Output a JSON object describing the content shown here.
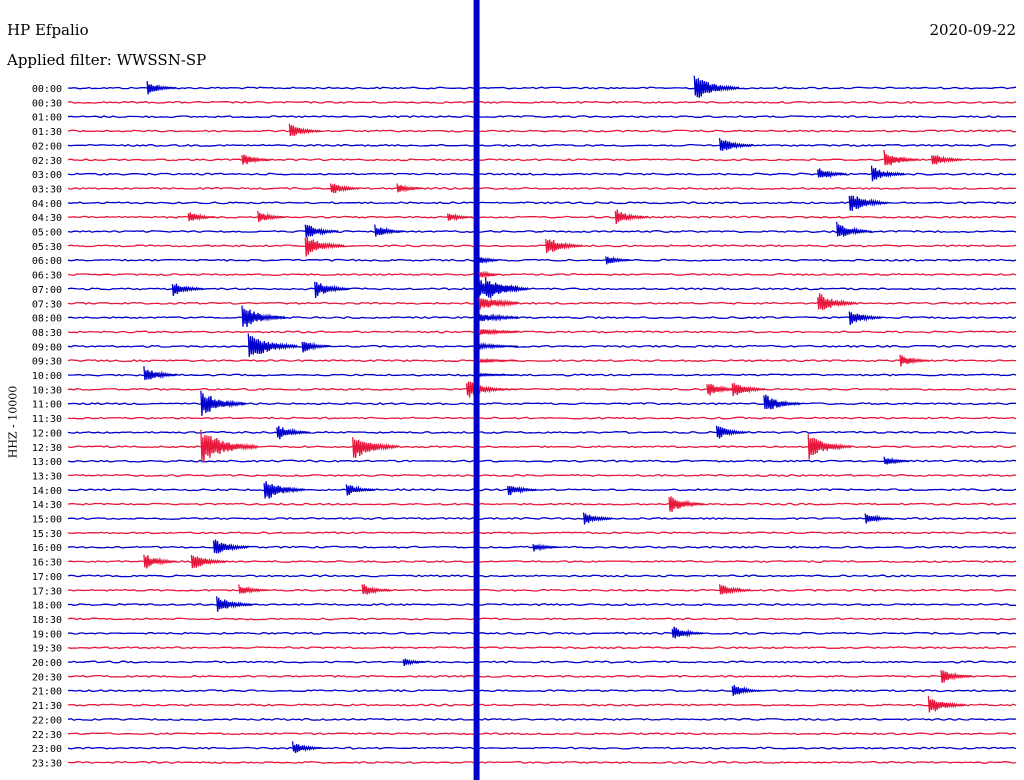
{
  "header": {
    "station": "HP Efpalio",
    "filter": "Applied filter: WWSSN-SP",
    "date": "2020-09-22"
  },
  "colors": {
    "trace_a": "#0000cc",
    "trace_b": "#e8183c",
    "text": "#000000"
  },
  "chart_data": {
    "type": "line",
    "title": "HP Efpalio",
    "subtitle": "Applied filter: WWSSN-SP",
    "ylabel": "HHZ - 10000",
    "xlabel": "",
    "date": "2020-09-22",
    "rows_per_hour": 2,
    "row_labels": [
      "00:00",
      "00:30",
      "01:00",
      "01:30",
      "02:00",
      "02:30",
      "03:00",
      "03:30",
      "04:00",
      "04:30",
      "05:00",
      "05:30",
      "06:00",
      "06:30",
      "07:00",
      "07:30",
      "08:00",
      "08:30",
      "09:00",
      "09:30",
      "10:00",
      "10:30",
      "11:00",
      "11:30",
      "12:00",
      "12:30",
      "13:00",
      "13:30",
      "14:00",
      "14:30",
      "15:00",
      "15:30",
      "16:00",
      "16:30",
      "17:00",
      "17:30",
      "18:00",
      "18:30",
      "19:00",
      "19:30",
      "20:00",
      "20:30",
      "21:00",
      "21:30",
      "22:00",
      "22:30",
      "23:00",
      "23:30"
    ],
    "row_minutes": 30,
    "events": [
      {
        "row": "00:00",
        "minute": 2.5,
        "amp": 0.8
      },
      {
        "row": "00:00",
        "minute": 19.8,
        "amp": 1.6
      },
      {
        "row": "01:30",
        "minute": 7.0,
        "amp": 0.9
      },
      {
        "row": "02:00",
        "minute": 20.6,
        "amp": 1.0
      },
      {
        "row": "02:30",
        "minute": 5.5,
        "amp": 0.8
      },
      {
        "row": "02:30",
        "minute": 25.8,
        "amp": 1.1
      },
      {
        "row": "02:30",
        "minute": 27.3,
        "amp": 0.9
      },
      {
        "row": "03:00",
        "minute": 23.7,
        "amp": 0.8
      },
      {
        "row": "03:00",
        "minute": 25.4,
        "amp": 1.0
      },
      {
        "row": "03:30",
        "minute": 8.3,
        "amp": 0.8
      },
      {
        "row": "03:30",
        "minute": 10.4,
        "amp": 0.6
      },
      {
        "row": "04:00",
        "minute": 24.7,
        "amp": 1.3
      },
      {
        "row": "04:30",
        "minute": 3.8,
        "amp": 0.7
      },
      {
        "row": "04:30",
        "minute": 6.0,
        "amp": 0.7
      },
      {
        "row": "04:30",
        "minute": 12.0,
        "amp": 0.6
      },
      {
        "row": "04:30",
        "minute": 17.3,
        "amp": 1.0
      },
      {
        "row": "05:00",
        "minute": 7.5,
        "amp": 1.0
      },
      {
        "row": "05:00",
        "minute": 9.7,
        "amp": 0.8
      },
      {
        "row": "05:00",
        "minute": 24.3,
        "amp": 1.1
      },
      {
        "row": "05:30",
        "minute": 7.5,
        "amp": 1.3
      },
      {
        "row": "05:30",
        "minute": 15.1,
        "amp": 1.2
      },
      {
        "row": "06:00",
        "minute": 17.0,
        "amp": 0.6
      },
      {
        "row": "07:00",
        "minute": 3.3,
        "amp": 0.9
      },
      {
        "row": "07:00",
        "minute": 7.8,
        "amp": 1.1
      },
      {
        "row": "07:00",
        "minute": 13.2,
        "amp": 1.5
      },
      {
        "row": "07:30",
        "minute": 23.7,
        "amp": 1.3
      },
      {
        "row": "08:00",
        "minute": 5.5,
        "amp": 1.5
      },
      {
        "row": "08:00",
        "minute": 24.7,
        "amp": 1.0
      },
      {
        "row": "09:00",
        "minute": 5.7,
        "amp": 1.8
      },
      {
        "row": "09:00",
        "minute": 7.4,
        "amp": 0.8
      },
      {
        "row": "09:30",
        "minute": 26.3,
        "amp": 0.8
      },
      {
        "row": "10:00",
        "minute": 2.4,
        "amp": 1.0
      },
      {
        "row": "10:30",
        "minute": 12.6,
        "amp": 1.2
      },
      {
        "row": "10:30",
        "minute": 20.2,
        "amp": 0.9
      },
      {
        "row": "10:30",
        "minute": 21.0,
        "amp": 1.0
      },
      {
        "row": "11:00",
        "minute": 4.2,
        "amp": 1.6
      },
      {
        "row": "11:00",
        "minute": 22.0,
        "amp": 1.2
      },
      {
        "row": "12:00",
        "minute": 6.6,
        "amp": 1.0
      },
      {
        "row": "12:00",
        "minute": 20.5,
        "amp": 0.9
      },
      {
        "row": "12:30",
        "minute": 4.2,
        "amp": 2.2
      },
      {
        "row": "12:30",
        "minute": 9.0,
        "amp": 1.6
      },
      {
        "row": "12:30",
        "minute": 23.4,
        "amp": 1.5
      },
      {
        "row": "13:00",
        "minute": 25.8,
        "amp": 0.6
      },
      {
        "row": "14:00",
        "minute": 6.2,
        "amp": 1.4
      },
      {
        "row": "14:00",
        "minute": 8.8,
        "amp": 0.8
      },
      {
        "row": "14:00",
        "minute": 13.9,
        "amp": 0.8
      },
      {
        "row": "14:30",
        "minute": 19.0,
        "amp": 1.1
      },
      {
        "row": "15:00",
        "minute": 16.3,
        "amp": 0.8
      },
      {
        "row": "15:00",
        "minute": 25.2,
        "amp": 0.7
      },
      {
        "row": "16:00",
        "minute": 4.6,
        "amp": 1.1
      },
      {
        "row": "16:00",
        "minute": 14.7,
        "amp": 0.6
      },
      {
        "row": "16:30",
        "minute": 2.4,
        "amp": 1.0
      },
      {
        "row": "16:30",
        "minute": 3.9,
        "amp": 1.1
      },
      {
        "row": "17:30",
        "minute": 5.4,
        "amp": 0.8
      },
      {
        "row": "17:30",
        "minute": 9.3,
        "amp": 0.8
      },
      {
        "row": "17:30",
        "minute": 20.6,
        "amp": 0.9
      },
      {
        "row": "18:00",
        "minute": 4.7,
        "amp": 1.1
      },
      {
        "row": "19:00",
        "minute": 19.1,
        "amp": 0.9
      },
      {
        "row": "20:00",
        "minute": 10.6,
        "amp": 0.5
      },
      {
        "row": "20:30",
        "minute": 27.6,
        "amp": 0.9
      },
      {
        "row": "21:00",
        "minute": 21.0,
        "amp": 0.8
      },
      {
        "row": "21:30",
        "minute": 27.2,
        "amp": 1.2
      },
      {
        "row": "23:00",
        "minute": 7.1,
        "amp": 0.8
      }
    ],
    "teleseism": {
      "start_row": "07:00",
      "minute": 12.9,
      "duration_rows": 8
    }
  }
}
